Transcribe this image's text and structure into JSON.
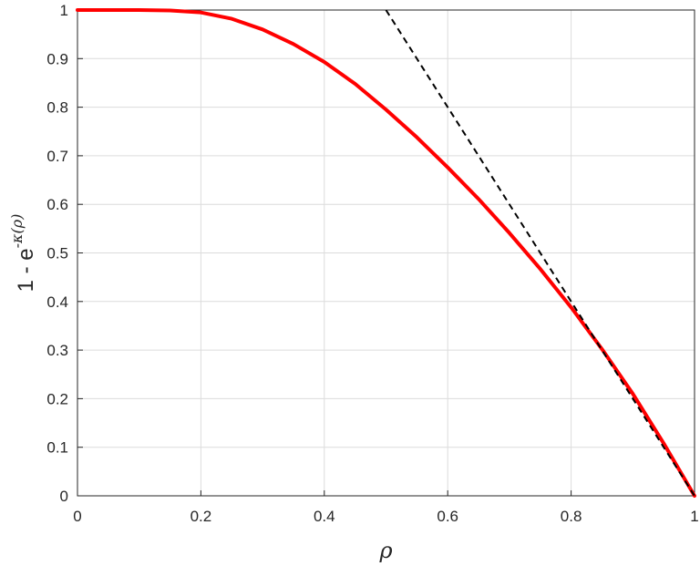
{
  "chart_data": {
    "type": "line",
    "title": "",
    "xlabel": "ρ",
    "ylabel": {
      "base": "1 - e",
      "exponent": "-κ(ρ)"
    },
    "xlim": [
      0,
      1
    ],
    "ylim": [
      0,
      1
    ],
    "xticks": [
      "0",
      "0.2",
      "0.4",
      "0.6",
      "0.8",
      "1"
    ],
    "yticks": [
      "0",
      "0.1",
      "0.2",
      "0.3",
      "0.4",
      "0.5",
      "0.6",
      "0.7",
      "0.8",
      "0.9",
      "1"
    ],
    "grid": true,
    "series": [
      {
        "style": "solid",
        "color": "#ff0000",
        "points": [
          [
            0,
            1.0
          ],
          [
            0.05,
            1.0
          ],
          [
            0.1,
            1.0
          ],
          [
            0.15,
            0.999
          ],
          [
            0.2,
            0.995
          ],
          [
            0.25,
            0.982
          ],
          [
            0.3,
            0.96
          ],
          [
            0.35,
            0.93
          ],
          [
            0.4,
            0.893
          ],
          [
            0.45,
            0.848
          ],
          [
            0.5,
            0.795
          ],
          [
            0.55,
            0.738
          ],
          [
            0.6,
            0.676
          ],
          [
            0.65,
            0.611
          ],
          [
            0.7,
            0.541
          ],
          [
            0.75,
            0.467
          ],
          [
            0.8,
            0.388
          ],
          [
            0.85,
            0.302
          ],
          [
            0.9,
            0.21
          ],
          [
            0.95,
            0.108
          ],
          [
            1.0,
            0.0
          ]
        ]
      },
      {
        "style": "dashed",
        "color": "#000000",
        "points": [
          [
            0.5,
            1.0
          ],
          [
            1.0,
            0.0
          ]
        ]
      }
    ]
  }
}
